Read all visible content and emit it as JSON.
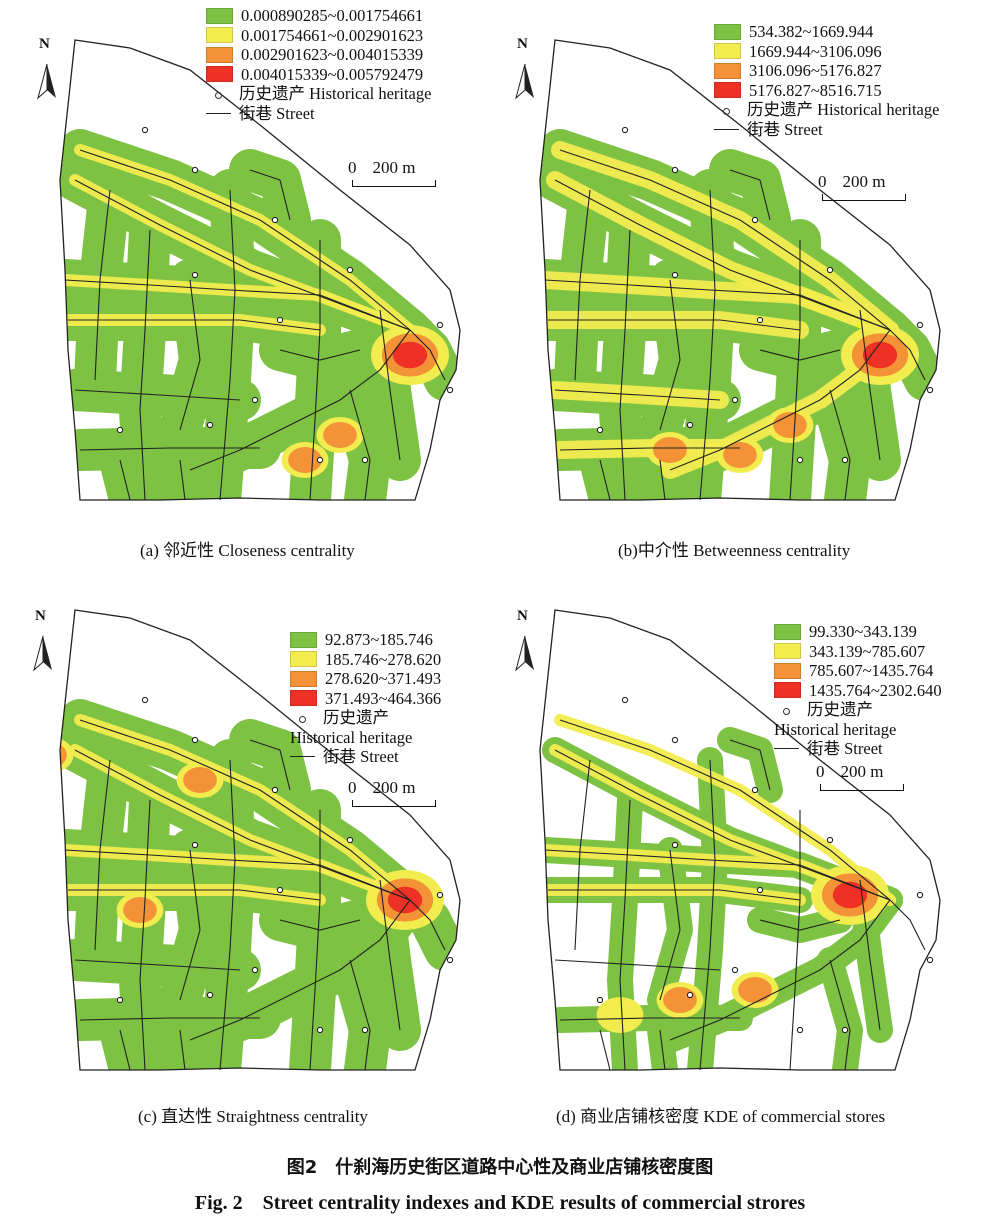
{
  "panels": [
    {
      "caption": "(a) 邻近性 Closeness centrality",
      "legend": [
        {
          "label": "0.000890285~0.001754661",
          "color": "#7dc242"
        },
        {
          "label": "0.001754661~0.002901623",
          "color": "#f2ec4f"
        },
        {
          "label": "0.002901623~0.004015339",
          "color": "#f39236"
        },
        {
          "label": "0.004015339~0.005792479",
          "color": "#ee3124"
        }
      ],
      "heritage_label": "历史遗产 Historical heritage",
      "street_label": "街巷 Street",
      "scale": {
        "zero": "0",
        "dist": "200 m"
      },
      "hotspots": [
        {
          "x": 390,
          "y": 325,
          "level": 3
        },
        {
          "x": 320,
          "y": 405,
          "level": 2
        },
        {
          "x": 285,
          "y": 430,
          "level": 2
        }
      ]
    },
    {
      "caption": "(b)中介性 Betweenness centrality",
      "legend": [
        {
          "label": "534.382~1669.944",
          "color": "#7dc242"
        },
        {
          "label": "1669.944~3106.096",
          "color": "#f2ec4f"
        },
        {
          "label": "3106.096~5176.827",
          "color": "#f39236"
        },
        {
          "label": "5176.827~8516.715",
          "color": "#ee3124"
        }
      ],
      "heritage_label": "历史遗产 Historical heritage",
      "street_label": "街巷 Street",
      "scale": {
        "zero": "0",
        "dist": "200 m"
      },
      "hotspots": [
        {
          "x": 380,
          "y": 325,
          "level": 3
        },
        {
          "x": 290,
          "y": 395,
          "level": 2
        },
        {
          "x": 240,
          "y": 425,
          "level": 2
        },
        {
          "x": 170,
          "y": 420,
          "level": 2
        }
      ]
    },
    {
      "caption": "(c) 直达性 Straightness centrality",
      "legend": [
        {
          "label": "92.873~185.746",
          "color": "#7dc242"
        },
        {
          "label": "185.746~278.620",
          "color": "#f2ec4f"
        },
        {
          "label": "278.620~371.493",
          "color": "#f39236"
        },
        {
          "label": "371.493~464.366",
          "color": "#ee3124"
        }
      ],
      "heritage_label": "历史遗产",
      "heritage_label_en": "Historical heritage",
      "street_label": "街巷 Street",
      "scale": {
        "zero": "0",
        "dist": "200 m"
      },
      "hotspots": [
        {
          "x": 385,
          "y": 300,
          "level": 3
        },
        {
          "x": 30,
          "y": 155,
          "level": 2
        },
        {
          "x": 180,
          "y": 180,
          "level": 2
        },
        {
          "x": 120,
          "y": 310,
          "level": 2
        }
      ]
    },
    {
      "caption": "(d) 商业店铺核密度 KDE of commercial stores",
      "legend": [
        {
          "label": "99.330~343.139",
          "color": "#7dc242"
        },
        {
          "label": "343.139~785.607",
          "color": "#f2ec4f"
        },
        {
          "label": "785.607~1435.764",
          "color": "#f39236"
        },
        {
          "label": "1435.764~2302.640",
          "color": "#ee3124"
        }
      ],
      "heritage_label": "历史遗产",
      "heritage_label_en": "Historical heritage",
      "street_label": "街巷 Street",
      "scale": {
        "zero": "0",
        "dist": "200 m"
      },
      "hotspots": [
        {
          "x": 350,
          "y": 295,
          "level": 3
        },
        {
          "x": 180,
          "y": 400,
          "level": 2
        },
        {
          "x": 255,
          "y": 390,
          "level": 2
        },
        {
          "x": 120,
          "y": 415,
          "level": 1
        }
      ]
    }
  ],
  "north_label": "N",
  "figure_title_zh": "图2　什刹海历史街区道路中心性及商业店铺核密度图",
  "figure_title_en": "Fig. 2　Street centrality indexes and KDE results of commercial strores"
}
